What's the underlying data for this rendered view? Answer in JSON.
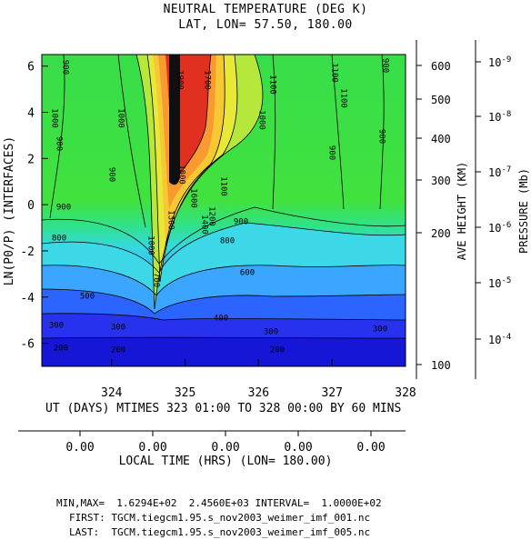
{
  "header": {
    "title": "NEUTRAL TEMPERATURE (DEG K)",
    "subtitle": "LAT, LON= 57.50,    180.00"
  },
  "chart_data": {
    "type": "heatmap",
    "title": "NEUTRAL TEMPERATURE (DEG K)",
    "subtitle": "LAT, LON= 57.50,    180.00",
    "ylabel": "LN(P0/P) (INTERFACES)",
    "ylim": [
      -7,
      6.5
    ],
    "yticks": [
      "6",
      "4",
      "2",
      "0",
      "-2",
      "-4",
      "-6"
    ],
    "xlim": [
      323.05,
      328.0
    ],
    "xticks": [
      "324",
      "325",
      "326",
      "327",
      "328"
    ],
    "xlabel": "UT (DAYS) MTIMES 323 01:00 TO 328 00:00 BY    60 MINS",
    "local_time_axis": {
      "label": "LOCAL TIME (HRS) (LON= 180.00)",
      "ticks": [
        "0.00",
        "0.00",
        "0.00",
        "0.00",
        "0.00"
      ]
    },
    "height_axis": {
      "label": "AVE HEIGHT (KM)",
      "ticks": [
        "600",
        "500",
        "400",
        "300",
        "200",
        "100"
      ]
    },
    "pressure_axis": {
      "label": "PRESSURE (Mb)",
      "ticks": [
        "10",
        "10",
        "10",
        "10",
        "10",
        "10"
      ],
      "exponents": [
        "-9",
        "-8",
        "-7",
        "-6",
        "-5",
        "-4"
      ]
    },
    "contour_labels": [
      "900",
      "1000",
      "1900",
      "1700",
      "1100",
      "1100",
      "900",
      "1000",
      "1000",
      "1100",
      "900",
      "900",
      "900",
      "900",
      "900",
      "1800",
      "1600",
      "1400",
      "1300",
      "1200",
      "1100",
      "900",
      "1000",
      "800",
      "800",
      "700",
      "600",
      "500",
      "400",
      "300",
      "300",
      "300",
      "300",
      "200",
      "200",
      "200"
    ],
    "min": 162.94,
    "max": 2456.0,
    "interval": 100,
    "colors": [
      "#1414d8",
      "#2832ee",
      "#2c64ff",
      "#3aa6ff",
      "#3cd8ec",
      "#34e4b4",
      "#30e278",
      "#3ae040",
      "#5ae234",
      "#b6e83c",
      "#e8e838",
      "#f6c834",
      "#f89a30",
      "#f06828",
      "#e23020",
      "#900808",
      "#000000"
    ]
  },
  "footer": {
    "minmax_line": "MIN,MAX=  1.6294E+02  2.4560E+03 INTERVAL=  1.0000E+02",
    "first_line": "FIRST: TGCM.tiegcm1.95.s_nov2003_weimer_imf_001.nc",
    "last_line": "LAST:  TGCM.tiegcm1.95.s_nov2003_weimer_imf_005.nc"
  }
}
